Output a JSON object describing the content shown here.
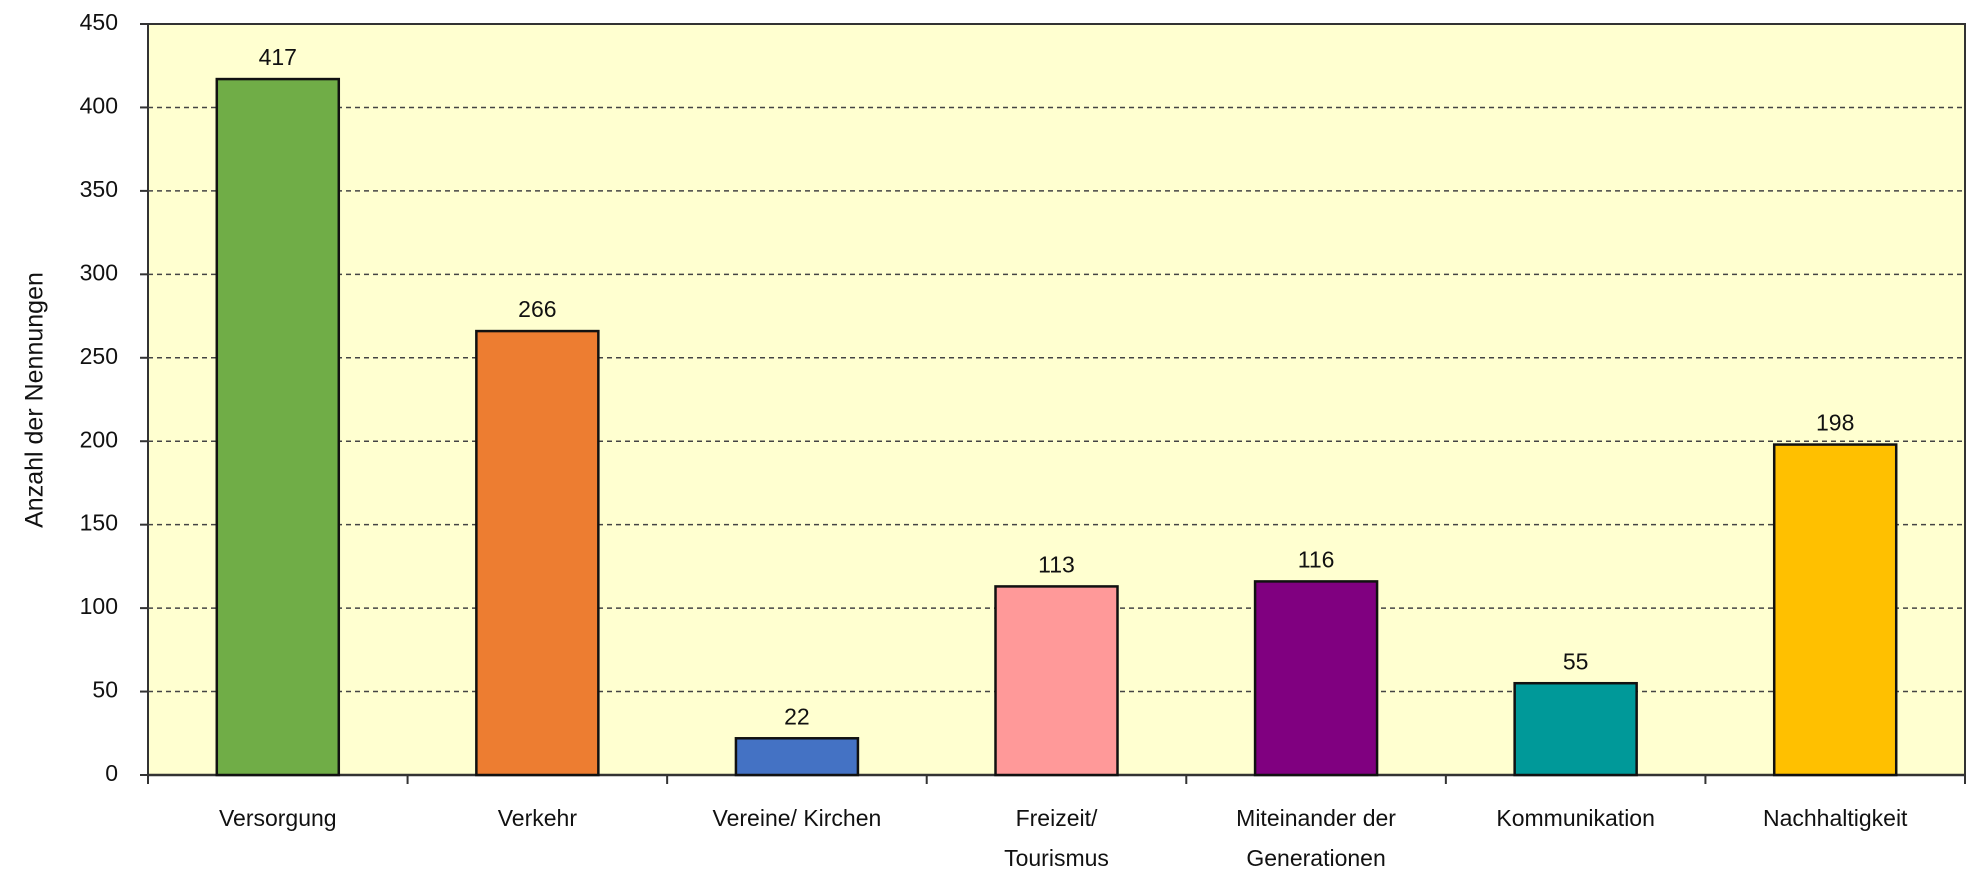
{
  "chart_data": {
    "type": "bar",
    "y_axis_label": "Anzahl der Nennungen",
    "categories": [
      "Versorgung",
      "Verkehr",
      "Vereine/ Kirchen",
      "Freizeit/\nTourismus",
      "Miteinander der\nGenerationen",
      "Kommunikation",
      "Nachhaltigkeit"
    ],
    "values": [
      417,
      266,
      22,
      113,
      116,
      55,
      198
    ],
    "colors": [
      "#70ad47",
      "#ed7d31",
      "#4472c4",
      "#ff9999",
      "#800080",
      "#009999",
      "#ffc000"
    ],
    "ylim": [
      0,
      450
    ],
    "yticks": [
      0,
      50,
      100,
      150,
      200,
      250,
      300,
      350,
      400,
      450
    ],
    "grid": true
  }
}
